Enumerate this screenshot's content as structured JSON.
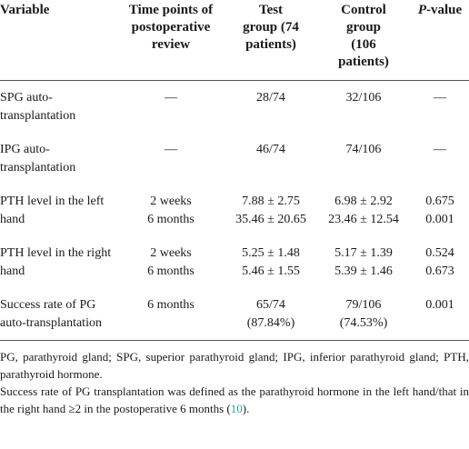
{
  "table": {
    "header": [
      [
        "Variable"
      ],
      [
        "Time points of",
        "postoperative",
        "review"
      ],
      [
        "Test",
        "group (74",
        "patients)"
      ],
      [
        "Control",
        "group",
        "(106",
        "patients)"
      ]
    ],
    "p_header": {
      "italic": "P",
      "rest": "-value"
    },
    "rows": [
      [
        "SPG auto-transplantation",
        [
          "—"
        ],
        [
          "28/74"
        ],
        [
          "32/106"
        ],
        [
          "—"
        ]
      ],
      [
        "IPG auto-transplantation",
        [
          "—"
        ],
        [
          "46/74"
        ],
        [
          "74/106"
        ],
        [
          "—"
        ]
      ],
      [
        "PTH level in the left hand",
        [
          "2 weeks",
          "6 months"
        ],
        [
          "7.88 ± 2.75",
          "35.46 ± 20.65"
        ],
        [
          "6.98 ± 2.92",
          "23.46 ± 12.54"
        ],
        [
          "0.675",
          "0.001"
        ]
      ],
      [
        "PTH level in the right hand",
        [
          "2 weeks",
          "6 months"
        ],
        [
          "5.25 ± 1.48",
          "5.46 ± 1.55"
        ],
        [
          "5.17 ± 1.39",
          "5.39 ± 1.46"
        ],
        [
          "0.524",
          "0.673"
        ]
      ],
      [
        "Success rate of PG auto-transplantation",
        [
          "6 months"
        ],
        [
          "65/74",
          "(87.84%)"
        ],
        [
          "79/106",
          "(74.53%)"
        ],
        [
          "0.001"
        ]
      ]
    ]
  },
  "notes": {
    "abbreviations": "PG, parathyroid gland; SPG, superior parathyroid gland; IPG, inferior parathyroid gland; PTH, parathyroid hormone.",
    "definition": {
      "text": "Success rate of PG transplantation was defined as the parathyroid hormone in the left hand/that in the right hand ≥2 in the postoperative 6 months (",
      "ref": "10",
      "end": ")."
    }
  }
}
